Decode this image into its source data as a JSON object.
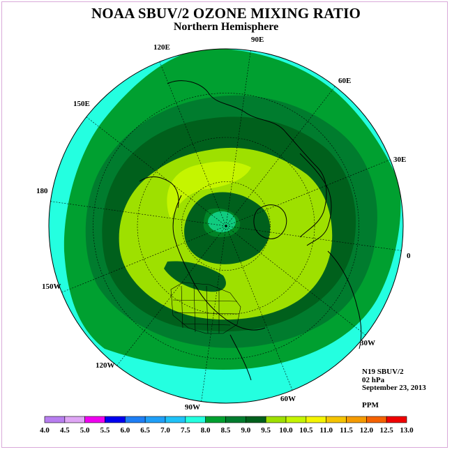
{
  "header": {
    "title": "NOAA SBUV/2 OZONE MIXING RATIO",
    "subtitle": "Northern Hemisphere"
  },
  "longitude_labels": [
    "90E",
    "60E",
    "30E",
    "0",
    "30W",
    "60W",
    "90W",
    "120W",
    "150W",
    "180",
    "150E",
    "120E"
  ],
  "info": {
    "instrument": "N19 SBUV/2",
    "level": "02 hPa",
    "date": "September 23, 2013",
    "units": "PPM"
  },
  "colorbar": {
    "ticks": [
      "4.0",
      "4.5",
      "5.0",
      "5.5",
      "6.0",
      "6.5",
      "7.0",
      "7.5",
      "8.0",
      "8.5",
      "9.0",
      "9.5",
      "10.0",
      "10.5",
      "11.0",
      "11.5",
      "12.0",
      "12.5",
      "13.0"
    ],
    "colors": [
      "#b87ef0",
      "#dfa6f5",
      "#f000f0",
      "#0000f0",
      "#1e7ef5",
      "#1f9ff8",
      "#1fc2f8",
      "#24ffe0",
      "#00a030",
      "#007c2e",
      "#00601c",
      "#9ee000",
      "#c5f500",
      "#f5f500",
      "#f5c400",
      "#f59b00",
      "#f56200",
      "#f00000",
      "#7e4e30"
    ]
  },
  "map": {
    "pole_color": "#24ffe0",
    "outer_color": "#24ffe0",
    "ring_colors": [
      "#00a030",
      "#007c2e",
      "#00601c",
      "#9ee000",
      "#c5f500"
    ],
    "border_color": "#000000"
  }
}
